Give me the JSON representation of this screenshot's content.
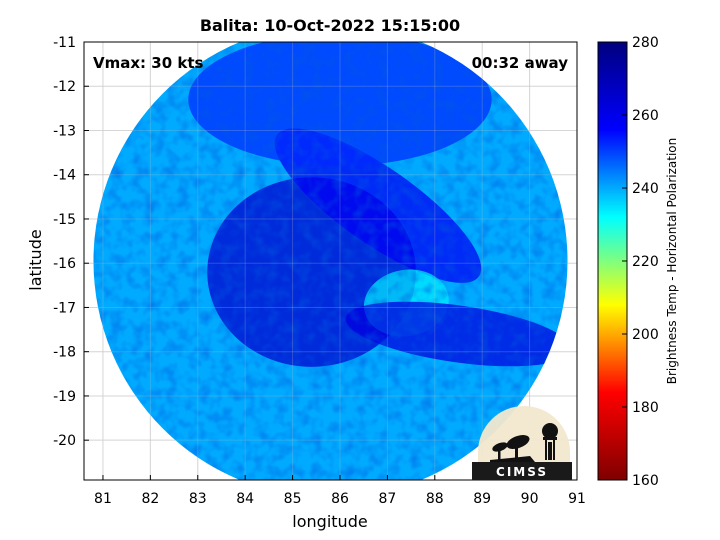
{
  "chart_data": {
    "type": "heatmap",
    "title": "Balita: 10-Oct-2022 15:15:00",
    "xlabel": "longitude",
    "ylabel": "latitude",
    "xlim": [
      80.6,
      91
    ],
    "ylim": [
      -20.9,
      -11
    ],
    "x_ticks": [
      "81",
      "82",
      "83",
      "84",
      "85",
      "86",
      "87",
      "88",
      "89",
      "90",
      "91"
    ],
    "y_ticks": [
      "-11",
      "-12",
      "-13",
      "-14",
      "-15",
      "-16",
      "-17",
      "-18",
      "-19",
      "-20"
    ],
    "grid": true,
    "annotations": {
      "vmax": "Vmax: 30 kts",
      "time_away": "00:32 away"
    },
    "colorbar": {
      "label": "Brightness Temp - Horizontal Polarization",
      "range": [
        160,
        280
      ],
      "ticks": [
        "160",
        "180",
        "200",
        "220",
        "240",
        "260",
        "280"
      ],
      "colormap": "jet",
      "colormap_stops": [
        "#7f0000",
        "#ff0000",
        "#ffff00",
        "#00ffff",
        "#0000ff",
        "#00007f"
      ]
    },
    "swath": {
      "shape": "circle",
      "center_lon": 85.8,
      "center_lat": -15.95,
      "radius_deg": 5.0,
      "background_value": 240,
      "features": [
        {
          "name": "cold-core",
          "lon": 85.4,
          "lat": -16.2,
          "value": 265
        },
        {
          "name": "spiral-band",
          "lon": 86.8,
          "lat": -14.7,
          "value": 258
        },
        {
          "name": "warm-gap",
          "lon": 87.4,
          "lat": -16.9,
          "value": 234
        },
        {
          "name": "south-band",
          "lon": 88.5,
          "lat": -17.6,
          "value": 262
        },
        {
          "name": "north-region",
          "lon": 86.0,
          "lat": -12.3,
          "value": 252
        }
      ]
    }
  },
  "logo": {
    "text": "CIMSS"
  }
}
